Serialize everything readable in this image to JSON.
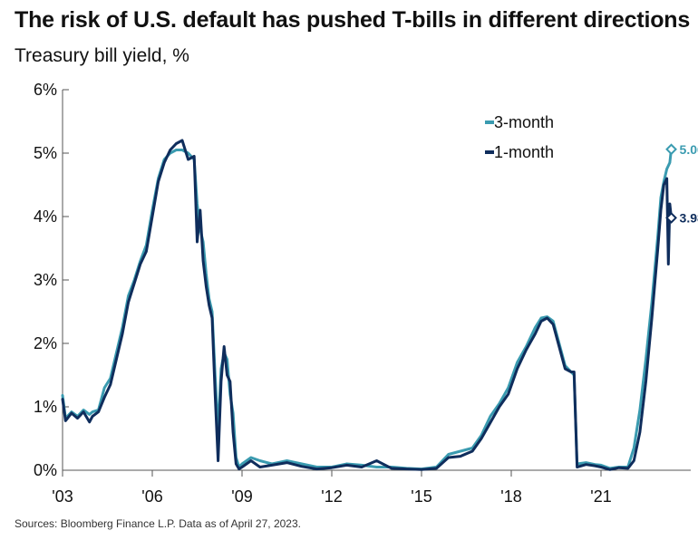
{
  "header": {
    "title": "The risk of U.S. default has pushed T-bills in different directions",
    "subtitle": "Treasury bill yield, %"
  },
  "footer": {
    "source": "Sources: Bloomberg Finance L.P. Data as of April 27, 2023."
  },
  "colors": {
    "three_month": "#3a9bb0",
    "one_month": "#0f2d5c",
    "axis": "#555555"
  },
  "chart_data": {
    "type": "line",
    "title": "The risk of U.S. default has pushed T-bills in different directions",
    "ylabel": "Treasury bill yield, %",
    "xlim": [
      2003.0,
      2024.0
    ],
    "ylim": [
      0,
      6
    ],
    "y_ticks": [
      {
        "value": 0,
        "label": "0%"
      },
      {
        "value": 1,
        "label": "1%"
      },
      {
        "value": 2,
        "label": "2%"
      },
      {
        "value": 3,
        "label": "3%"
      },
      {
        "value": 4,
        "label": "4%"
      },
      {
        "value": 5,
        "label": "5%"
      },
      {
        "value": 6,
        "label": "6%"
      }
    ],
    "x_ticks": [
      {
        "value": 2003,
        "label": "'03"
      },
      {
        "value": 2006,
        "label": "'06"
      },
      {
        "value": 2009,
        "label": "'09"
      },
      {
        "value": 2012,
        "label": "'12"
      },
      {
        "value": 2015,
        "label": "'15"
      },
      {
        "value": 2018,
        "label": "'18"
      },
      {
        "value": 2021,
        "label": "'21"
      }
    ],
    "grid": false,
    "legend": "top-right",
    "series": [
      {
        "name": "3-month",
        "end_label": "5.06%",
        "end_value": 5.06,
        "points": [
          [
            2003.0,
            1.18
          ],
          [
            2003.1,
            0.82
          ],
          [
            2003.3,
            0.92
          ],
          [
            2003.5,
            0.85
          ],
          [
            2003.7,
            0.95
          ],
          [
            2003.9,
            0.88
          ],
          [
            2004.0,
            0.92
          ],
          [
            2004.2,
            0.95
          ],
          [
            2004.4,
            1.3
          ],
          [
            2004.6,
            1.45
          ],
          [
            2004.8,
            1.85
          ],
          [
            2005.0,
            2.25
          ],
          [
            2005.2,
            2.75
          ],
          [
            2005.4,
            3.0
          ],
          [
            2005.6,
            3.3
          ],
          [
            2005.8,
            3.55
          ],
          [
            2006.0,
            4.1
          ],
          [
            2006.2,
            4.6
          ],
          [
            2006.4,
            4.9
          ],
          [
            2006.6,
            5.0
          ],
          [
            2006.8,
            5.05
          ],
          [
            2007.0,
            5.05
          ],
          [
            2007.2,
            5.0
          ],
          [
            2007.4,
            4.9
          ],
          [
            2007.5,
            4.2
          ],
          [
            2007.6,
            3.8
          ],
          [
            2007.7,
            3.6
          ],
          [
            2007.8,
            3.1
          ],
          [
            2007.9,
            2.7
          ],
          [
            2008.0,
            2.5
          ],
          [
            2008.1,
            1.5
          ],
          [
            2008.2,
            0.6
          ],
          [
            2008.3,
            1.6
          ],
          [
            2008.4,
            1.85
          ],
          [
            2008.5,
            1.75
          ],
          [
            2008.6,
            1.2
          ],
          [
            2008.7,
            0.9
          ],
          [
            2008.8,
            0.2
          ],
          [
            2008.9,
            0.05
          ],
          [
            2009.0,
            0.1
          ],
          [
            2009.3,
            0.2
          ],
          [
            2009.6,
            0.15
          ],
          [
            2010.0,
            0.1
          ],
          [
            2010.5,
            0.15
          ],
          [
            2011.0,
            0.1
          ],
          [
            2011.5,
            0.05
          ],
          [
            2012.0,
            0.05
          ],
          [
            2012.5,
            0.1
          ],
          [
            2013.0,
            0.08
          ],
          [
            2013.5,
            0.05
          ],
          [
            2014.0,
            0.05
          ],
          [
            2014.5,
            0.03
          ],
          [
            2015.0,
            0.02
          ],
          [
            2015.5,
            0.05
          ],
          [
            2015.9,
            0.25
          ],
          [
            2016.3,
            0.3
          ],
          [
            2016.7,
            0.35
          ],
          [
            2017.0,
            0.55
          ],
          [
            2017.3,
            0.85
          ],
          [
            2017.6,
            1.05
          ],
          [
            2017.9,
            1.3
          ],
          [
            2018.2,
            1.7
          ],
          [
            2018.5,
            1.95
          ],
          [
            2018.8,
            2.25
          ],
          [
            2019.0,
            2.4
          ],
          [
            2019.2,
            2.42
          ],
          [
            2019.4,
            2.35
          ],
          [
            2019.6,
            2.0
          ],
          [
            2019.8,
            1.65
          ],
          [
            2020.0,
            1.55
          ],
          [
            2020.1,
            1.5
          ],
          [
            2020.2,
            0.1
          ],
          [
            2020.5,
            0.12
          ],
          [
            2020.8,
            0.09
          ],
          [
            2021.0,
            0.08
          ],
          [
            2021.3,
            0.03
          ],
          [
            2021.6,
            0.05
          ],
          [
            2021.9,
            0.05
          ],
          [
            2022.1,
            0.35
          ],
          [
            2022.3,
            0.95
          ],
          [
            2022.5,
            1.75
          ],
          [
            2022.7,
            2.65
          ],
          [
            2022.9,
            3.7
          ],
          [
            2023.0,
            4.3
          ],
          [
            2023.1,
            4.55
          ],
          [
            2023.2,
            4.75
          ],
          [
            2023.3,
            4.85
          ],
          [
            2023.35,
            5.06
          ]
        ]
      },
      {
        "name": "1-month",
        "end_label": "3.98%",
        "end_value": 3.98,
        "points": [
          [
            2003.0,
            1.12
          ],
          [
            2003.1,
            0.78
          ],
          [
            2003.3,
            0.9
          ],
          [
            2003.5,
            0.82
          ],
          [
            2003.7,
            0.92
          ],
          [
            2003.9,
            0.76
          ],
          [
            2004.0,
            0.85
          ],
          [
            2004.2,
            0.92
          ],
          [
            2004.4,
            1.15
          ],
          [
            2004.6,
            1.35
          ],
          [
            2004.8,
            1.75
          ],
          [
            2005.0,
            2.15
          ],
          [
            2005.2,
            2.65
          ],
          [
            2005.4,
            2.95
          ],
          [
            2005.6,
            3.25
          ],
          [
            2005.8,
            3.45
          ],
          [
            2006.0,
            4.0
          ],
          [
            2006.2,
            4.55
          ],
          [
            2006.4,
            4.85
          ],
          [
            2006.6,
            5.05
          ],
          [
            2006.8,
            5.15
          ],
          [
            2007.0,
            5.2
          ],
          [
            2007.2,
            4.9
          ],
          [
            2007.4,
            4.95
          ],
          [
            2007.5,
            3.6
          ],
          [
            2007.6,
            4.1
          ],
          [
            2007.7,
            3.3
          ],
          [
            2007.8,
            2.9
          ],
          [
            2007.9,
            2.6
          ],
          [
            2008.0,
            2.4
          ],
          [
            2008.1,
            1.2
          ],
          [
            2008.2,
            0.15
          ],
          [
            2008.3,
            1.4
          ],
          [
            2008.4,
            1.95
          ],
          [
            2008.5,
            1.5
          ],
          [
            2008.6,
            1.4
          ],
          [
            2008.7,
            0.6
          ],
          [
            2008.8,
            0.1
          ],
          [
            2008.9,
            0.02
          ],
          [
            2009.0,
            0.05
          ],
          [
            2009.3,
            0.15
          ],
          [
            2009.6,
            0.05
          ],
          [
            2010.0,
            0.08
          ],
          [
            2010.5,
            0.12
          ],
          [
            2011.0,
            0.06
          ],
          [
            2011.5,
            0.02
          ],
          [
            2012.0,
            0.04
          ],
          [
            2012.5,
            0.08
          ],
          [
            2013.0,
            0.05
          ],
          [
            2013.5,
            0.15
          ],
          [
            2014.0,
            0.03
          ],
          [
            2014.5,
            0.02
          ],
          [
            2015.0,
            0.01
          ],
          [
            2015.5,
            0.03
          ],
          [
            2015.9,
            0.2
          ],
          [
            2016.3,
            0.22
          ],
          [
            2016.7,
            0.3
          ],
          [
            2017.0,
            0.5
          ],
          [
            2017.3,
            0.75
          ],
          [
            2017.6,
            1.0
          ],
          [
            2017.9,
            1.2
          ],
          [
            2018.2,
            1.6
          ],
          [
            2018.5,
            1.9
          ],
          [
            2018.8,
            2.15
          ],
          [
            2019.0,
            2.35
          ],
          [
            2019.2,
            2.4
          ],
          [
            2019.4,
            2.3
          ],
          [
            2019.6,
            1.95
          ],
          [
            2019.8,
            1.6
          ],
          [
            2020.0,
            1.55
          ],
          [
            2020.1,
            1.55
          ],
          [
            2020.2,
            0.05
          ],
          [
            2020.5,
            0.09
          ],
          [
            2020.8,
            0.07
          ],
          [
            2021.0,
            0.05
          ],
          [
            2021.3,
            0.01
          ],
          [
            2021.6,
            0.04
          ],
          [
            2021.9,
            0.03
          ],
          [
            2022.1,
            0.15
          ],
          [
            2022.3,
            0.6
          ],
          [
            2022.5,
            1.4
          ],
          [
            2022.7,
            2.4
          ],
          [
            2022.9,
            3.5
          ],
          [
            2023.0,
            4.1
          ],
          [
            2023.1,
            4.5
          ],
          [
            2023.2,
            4.6
          ],
          [
            2023.25,
            3.25
          ],
          [
            2023.3,
            4.2
          ],
          [
            2023.35,
            3.98
          ]
        ]
      }
    ]
  }
}
